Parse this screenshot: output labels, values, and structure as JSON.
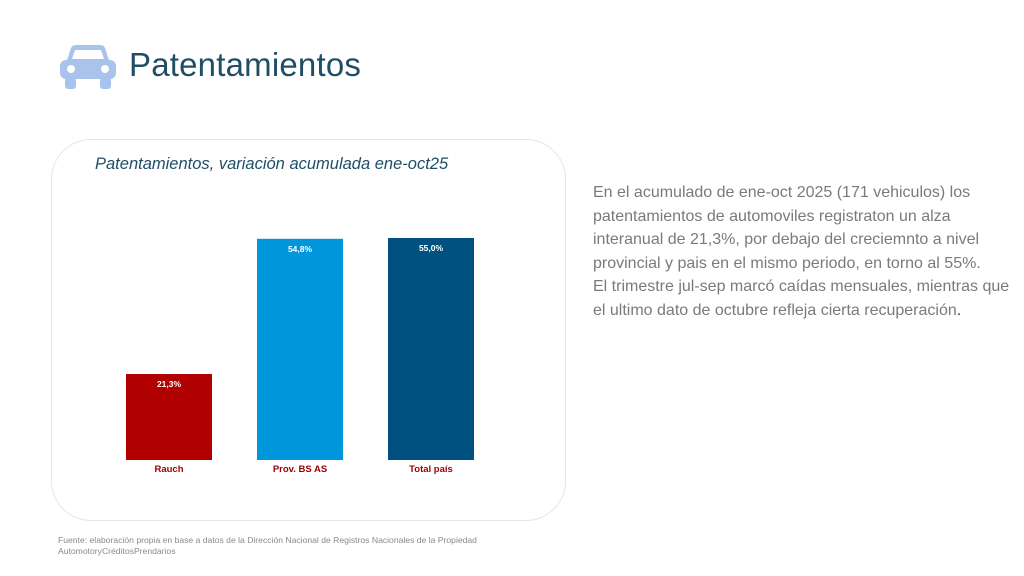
{
  "header": {
    "icon": "car-icon",
    "title": "Patentamientos"
  },
  "colors": {
    "title": "#1f4e66",
    "icon": "#a9c4ec",
    "body_text": "#7a7a7a"
  },
  "chart_data": {
    "type": "bar",
    "title": "Patentamientos, variación acumulada ene-oct25",
    "categories": [
      "Rauch",
      "Prov. BS AS",
      "Total país"
    ],
    "values": [
      21.3,
      54.8,
      55.0
    ],
    "value_labels": [
      "21,3%",
      "54,8%",
      "55,0%"
    ],
    "bar_colors": [
      "#b00000",
      "#0096dc",
      "#00517f"
    ],
    "category_label_color": "#9b0000",
    "ylim": [
      0,
      55.0
    ],
    "xlabel": "",
    "ylabel": "",
    "grid": false,
    "legend": "none"
  },
  "description": {
    "paragraph1": "En el acumulado de ene-oct 2025 (171 vehiculos) los patentamientos de automoviles registraton un alza interanual de 21,3%, por debajo del creciemnto a nivel provincial y pais en el mismo periodo, en torno al 55%.",
    "paragraph2": "El trimestre jul-sep marcó caídas mensuales, mientras que el ultimo dato de octubre refleja cierta recuperación",
    "paragraph2_end": "."
  },
  "source": {
    "line1": "Fuente: elaboración propia en base a datos de la Dirección Nacional de Registros Nacionales de la Propiedad",
    "line2": "AutomotoryCréditosPrendarios"
  }
}
